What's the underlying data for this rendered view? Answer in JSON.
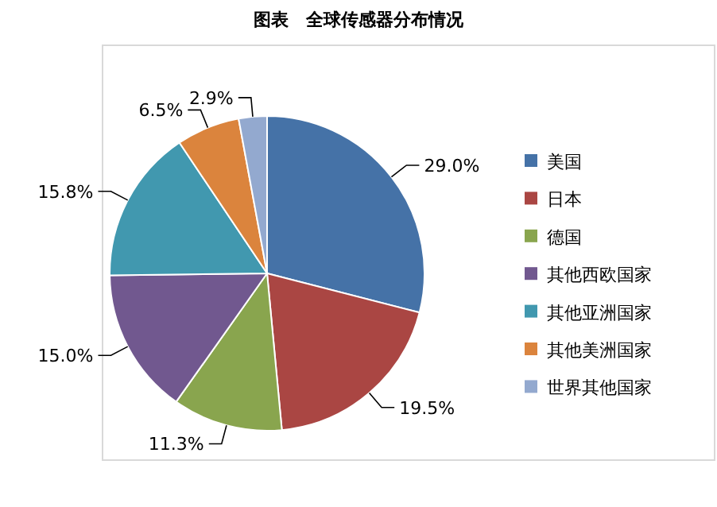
{
  "chart_data": {
    "type": "pie",
    "title": "图表　全球传感器分布情况",
    "categories": [
      "美国",
      "日本",
      "德国",
      "其他西欧国家",
      "其他亚洲国家",
      "其他美洲国家",
      "世界其他国家"
    ],
    "values": [
      29.0,
      19.5,
      11.3,
      15.0,
      15.8,
      6.5,
      2.9
    ],
    "value_labels": [
      "29.0%",
      "19.5%",
      "11.3%",
      "15.0%",
      "15.8%",
      "6.5%",
      "2.9%"
    ],
    "colors": [
      "#4572a7",
      "#aa4643",
      "#89a54e",
      "#71588f",
      "#4198af",
      "#db843d",
      "#93a9cf"
    ],
    "legend": "right"
  }
}
